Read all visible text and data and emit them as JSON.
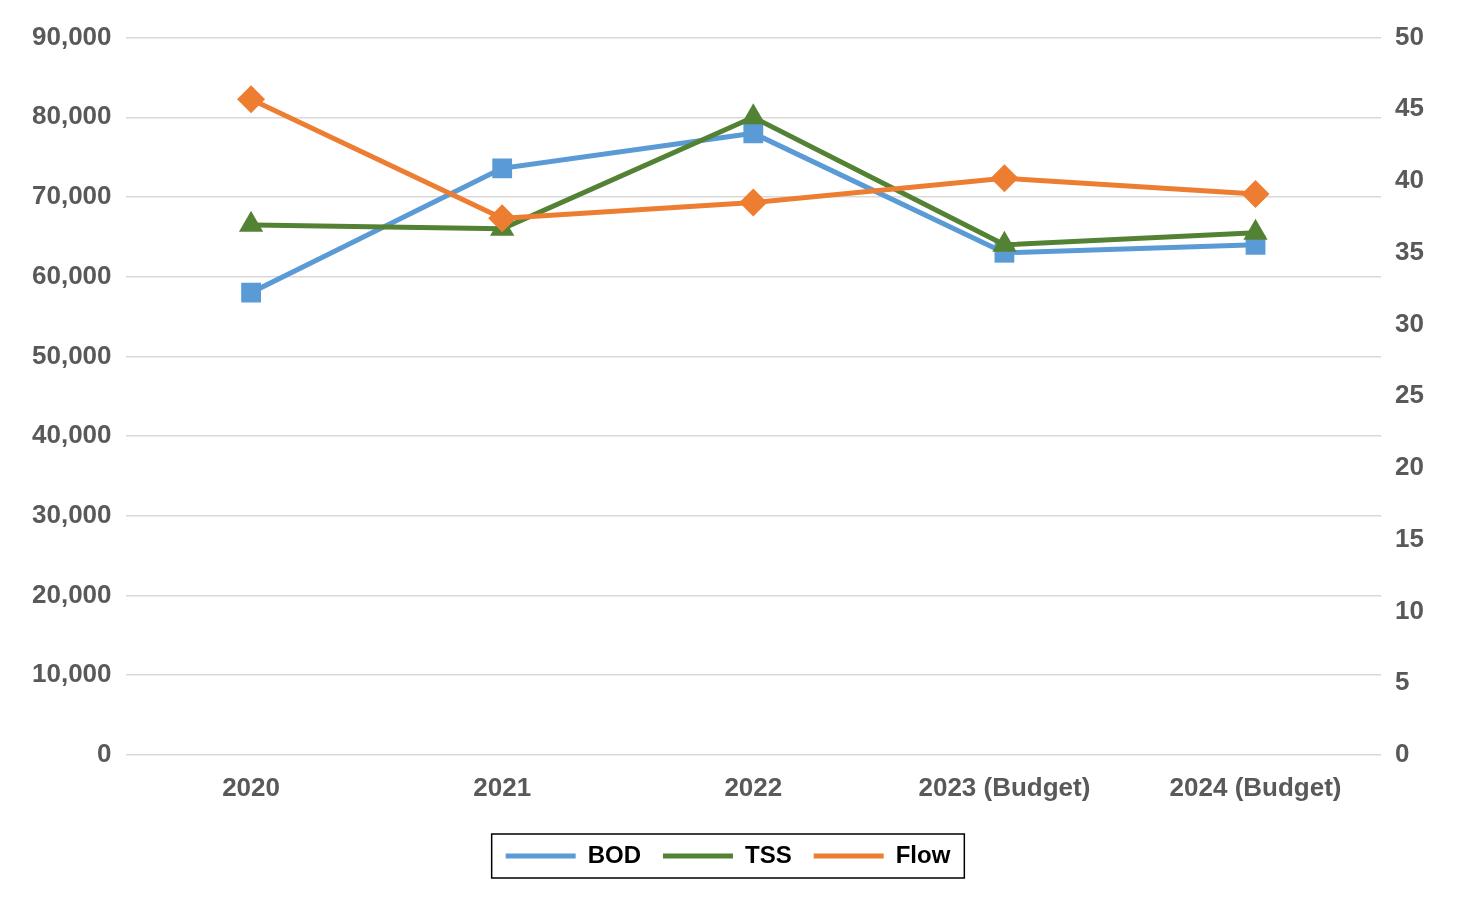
{
  "chart_data": {
    "type": "line",
    "categories": [
      "2020",
      "2021",
      "2022",
      "2023 (Budget)",
      "2024 (Budget)"
    ],
    "series": [
      {
        "name": "BOD",
        "color": "#5b9bd5",
        "marker": "square",
        "values": [
          58000,
          73600,
          78000,
          63000,
          64000
        ]
      },
      {
        "name": "TSS",
        "color": "#548235",
        "marker": "triangle",
        "values": [
          66500,
          66000,
          80000,
          64000,
          65500
        ]
      },
      {
        "name": "Flow",
        "color": "#ed7d31",
        "marker": "diamond",
        "axis": "y2",
        "values": [
          45.7,
          37.4,
          38.5,
          40.2,
          39.1
        ]
      }
    ],
    "ylim": [
      0,
      90000
    ],
    "yticks": [
      {
        "value": 0,
        "label": "0"
      },
      {
        "value": 10000,
        "label": "10,000"
      },
      {
        "value": 20000,
        "label": "20,000"
      },
      {
        "value": 30000,
        "label": "30,000"
      },
      {
        "value": 40000,
        "label": "40,000"
      },
      {
        "value": 50000,
        "label": "50,000"
      },
      {
        "value": 60000,
        "label": "60,000"
      },
      {
        "value": 70000,
        "label": "70,000"
      },
      {
        "value": 80000,
        "label": "80,000"
      },
      {
        "value": 90000,
        "label": "90,000"
      }
    ],
    "y2lim": [
      0,
      50
    ],
    "y2ticks": [
      0,
      5,
      10,
      15,
      20,
      25,
      30,
      35,
      40,
      45,
      50
    ],
    "grid": "y",
    "legend": "bottom",
    "line_style": "solid"
  }
}
